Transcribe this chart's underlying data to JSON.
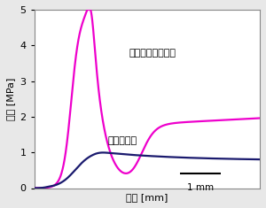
{
  "title": "",
  "xlabel": "変位 [mm]",
  "ylabel": "応力 [MPa]",
  "xlim": [
    0,
    5.5
  ],
  "ylim": [
    0,
    5
  ],
  "yticks": [
    0,
    1,
    2,
    3,
    4,
    5
  ],
  "xticks": [],
  "label_silica": "多孔質シリカ基材",
  "label_pre": "処理前基材",
  "scale_bar_label": "1 mm",
  "color_silica": "#EE00CC",
  "color_pre": "#1a1a6e",
  "bg_color": "#e8e8e8",
  "plot_bg": "#ffffff"
}
